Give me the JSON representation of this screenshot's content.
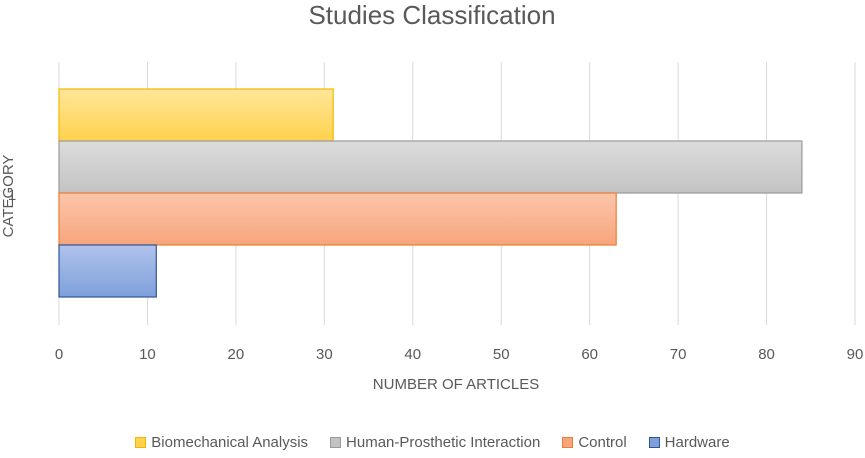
{
  "chart_data": {
    "type": "bar",
    "orientation": "horizontal",
    "title": "Studies Classification",
    "xlabel": "NUMBER OF ARTICLES",
    "ylabel": "CATEGORY",
    "categories": [
      "1"
    ],
    "xlim": [
      0,
      90
    ],
    "xticks": [
      0,
      10,
      20,
      30,
      40,
      50,
      60,
      70,
      80,
      90
    ],
    "grid": "vertical",
    "legend_position": "bottom",
    "series": [
      {
        "name": "Biomechanical Analysis",
        "values": [
          31
        ],
        "color": "#FFC000",
        "fill_light": "#FFE699",
        "fill_dark": "#FFD24D",
        "stroke": "#F2B800"
      },
      {
        "name": "Human-Prosthetic Interaction",
        "values": [
          84
        ],
        "color": "#A5A5A5",
        "fill_light": "#DCDCDC",
        "fill_dark": "#C3C3C3",
        "stroke": "#9A9A9A"
      },
      {
        "name": "Control",
        "values": [
          63
        ],
        "color": "#ED7D31",
        "fill_light": "#FBC6AA",
        "fill_dark": "#F7A57C",
        "stroke": "#ED7D31"
      },
      {
        "name": "Hardware",
        "values": [
          11
        ],
        "color": "#4472C4",
        "fill_light": "#AFC3EB",
        "fill_dark": "#7F9FDB",
        "stroke": "#2F5597"
      }
    ]
  }
}
